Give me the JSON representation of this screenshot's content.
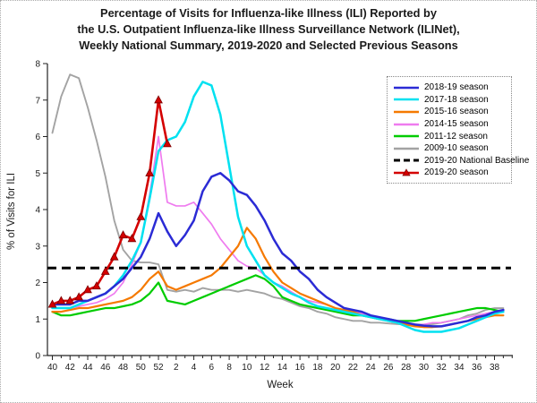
{
  "title": {
    "lines": [
      "Percentage of Visits for Influenza-like Illness (ILI) Reported by",
      "the U.S. Outpatient Influenza-like Illness Surveillance Network (ILINet),",
      "Weekly National Summary, 2019-2020 and Selected Previous Seasons"
    ]
  },
  "chart_data": {
    "type": "line",
    "title": "Percentage of Visits for Influenza-like Illness (ILI) Reported by the U.S. Outpatient Influenza-like Illness Surveillance Network (ILINet), Weekly National Summary, 2019-2020 and Selected Previous Seasons",
    "xlabel": "Week",
    "ylabel": "% of Visits for ILI",
    "ylim": [
      0,
      8
    ],
    "yticks": [
      0,
      1,
      2,
      3,
      4,
      5,
      6,
      7,
      8
    ],
    "x_weeks": [
      40,
      41,
      42,
      43,
      44,
      45,
      46,
      47,
      48,
      49,
      50,
      51,
      52,
      1,
      2,
      3,
      4,
      5,
      6,
      7,
      8,
      9,
      10,
      11,
      12,
      13,
      14,
      15,
      16,
      17,
      18,
      19,
      20,
      21,
      22,
      23,
      24,
      25,
      26,
      27,
      28,
      29,
      30,
      31,
      32,
      33,
      34,
      35,
      36,
      37,
      38,
      39
    ],
    "xtick_label_step": 2,
    "grid": false,
    "legend_position": "upper right",
    "baseline": {
      "label": "2019-20 National Baseline",
      "value": 2.4,
      "color": "#000000",
      "dashed": true
    },
    "series": [
      {
        "name": "2018-19 season",
        "color": "#2B2BD5",
        "values": [
          1.4,
          1.4,
          1.4,
          1.5,
          1.5,
          1.6,
          1.7,
          1.9,
          2.1,
          2.4,
          2.7,
          3.2,
          3.9,
          3.4,
          3.0,
          3.3,
          3.7,
          4.5,
          4.9,
          5.0,
          4.8,
          4.5,
          4.4,
          4.1,
          3.7,
          3.2,
          2.8,
          2.6,
          2.3,
          2.1,
          1.8,
          1.6,
          1.45,
          1.3,
          1.25,
          1.2,
          1.1,
          1.05,
          1.0,
          0.95,
          0.9,
          0.85,
          0.82,
          0.8,
          0.8,
          0.85,
          0.9,
          0.95,
          1.05,
          1.1,
          1.2,
          1.25
        ]
      },
      {
        "name": "2017-18 season",
        "color": "#00E1F0",
        "values": [
          1.3,
          1.3,
          1.3,
          1.4,
          1.5,
          1.6,
          1.7,
          1.9,
          2.2,
          2.6,
          3.1,
          4.3,
          5.6,
          5.9,
          6.0,
          6.4,
          7.1,
          7.5,
          7.4,
          6.6,
          5.2,
          3.8,
          3.0,
          2.6,
          2.2,
          2.0,
          1.85,
          1.7,
          1.6,
          1.45,
          1.35,
          1.3,
          1.25,
          1.2,
          1.15,
          1.1,
          1.05,
          1.0,
          0.95,
          0.9,
          0.8,
          0.7,
          0.65,
          0.65,
          0.65,
          0.7,
          0.75,
          0.85,
          0.95,
          1.05,
          1.15,
          1.2
        ]
      },
      {
        "name": "2015-16 season",
        "color": "#F57900",
        "values": [
          1.2,
          1.2,
          1.25,
          1.3,
          1.3,
          1.35,
          1.4,
          1.45,
          1.5,
          1.6,
          1.8,
          2.1,
          2.3,
          1.9,
          1.8,
          1.9,
          2.0,
          2.1,
          2.2,
          2.4,
          2.7,
          3.0,
          3.5,
          3.2,
          2.7,
          2.3,
          2.0,
          1.85,
          1.7,
          1.6,
          1.5,
          1.4,
          1.3,
          1.25,
          1.2,
          1.1,
          1.05,
          1.0,
          0.95,
          0.9,
          0.85,
          0.8,
          0.78,
          0.78,
          0.8,
          0.85,
          0.9,
          0.95,
          1.0,
          1.05,
          1.1,
          1.1
        ]
      },
      {
        "name": "2014-15 season",
        "color": "#EF7BEF",
        "values": [
          1.3,
          1.3,
          1.3,
          1.35,
          1.4,
          1.45,
          1.55,
          1.7,
          2.0,
          2.5,
          3.1,
          4.4,
          6.0,
          4.2,
          4.1,
          4.1,
          4.2,
          3.9,
          3.6,
          3.2,
          2.9,
          2.6,
          2.45,
          2.4,
          2.2,
          2.0,
          1.9,
          1.75,
          1.6,
          1.5,
          1.45,
          1.4,
          1.3,
          1.25,
          1.2,
          1.15,
          1.1,
          1.05,
          1.0,
          0.95,
          0.9,
          0.85,
          0.85,
          0.9,
          0.9,
          0.95,
          1.0,
          1.05,
          1.1,
          1.15,
          1.2,
          1.2
        ]
      },
      {
        "name": "2011-12 season",
        "color": "#00CC00",
        "values": [
          1.2,
          1.1,
          1.1,
          1.15,
          1.2,
          1.25,
          1.3,
          1.3,
          1.35,
          1.4,
          1.5,
          1.7,
          2.0,
          1.5,
          1.45,
          1.4,
          1.5,
          1.6,
          1.7,
          1.8,
          1.9,
          2.0,
          2.1,
          2.2,
          2.1,
          1.9,
          1.6,
          1.5,
          1.4,
          1.35,
          1.3,
          1.25,
          1.2,
          1.15,
          1.1,
          1.1,
          1.05,
          1.0,
          1.0,
          0.95,
          0.95,
          0.95,
          1.0,
          1.05,
          1.1,
          1.15,
          1.2,
          1.25,
          1.3,
          1.3,
          1.25,
          1.2
        ]
      },
      {
        "name": "2009-10 season",
        "color": "#A3A3A3",
        "values": [
          6.1,
          7.1,
          7.7,
          7.6,
          6.8,
          5.9,
          4.9,
          3.7,
          2.9,
          2.6,
          2.55,
          2.55,
          2.5,
          1.8,
          1.75,
          1.8,
          1.75,
          1.85,
          1.8,
          1.8,
          1.8,
          1.75,
          1.8,
          1.75,
          1.7,
          1.6,
          1.55,
          1.45,
          1.35,
          1.3,
          1.2,
          1.15,
          1.05,
          1.0,
          0.95,
          0.95,
          0.9,
          0.9,
          0.88,
          0.86,
          0.85,
          0.85,
          0.85,
          0.86,
          0.9,
          0.95,
          1.0,
          1.1,
          1.15,
          1.25,
          1.3,
          1.3
        ]
      },
      {
        "name": "2019-20 season",
        "color": "#D40000",
        "marker": "triangle",
        "values": [
          1.4,
          1.5,
          1.5,
          1.6,
          1.8,
          1.9,
          2.3,
          2.7,
          3.3,
          3.2,
          3.8,
          5.0,
          7.0,
          5.8
        ]
      }
    ],
    "legend": [
      {
        "label": "2018-19 season",
        "color": "#2B2BD5",
        "style": "solid"
      },
      {
        "label": "2017-18 season",
        "color": "#00E1F0",
        "style": "solid"
      },
      {
        "label": "2015-16 season",
        "color": "#F57900",
        "style": "solid"
      },
      {
        "label": "2014-15 season",
        "color": "#EF7BEF",
        "style": "solid"
      },
      {
        "label": "2011-12 season",
        "color": "#00CC00",
        "style": "solid"
      },
      {
        "label": "2009-10 season",
        "color": "#A3A3A3",
        "style": "solid"
      },
      {
        "label": "2019-20 National Baseline",
        "color": "#000000",
        "style": "dashed"
      },
      {
        "label": "2019-20 season",
        "color": "#D40000",
        "style": "triangle"
      }
    ]
  }
}
